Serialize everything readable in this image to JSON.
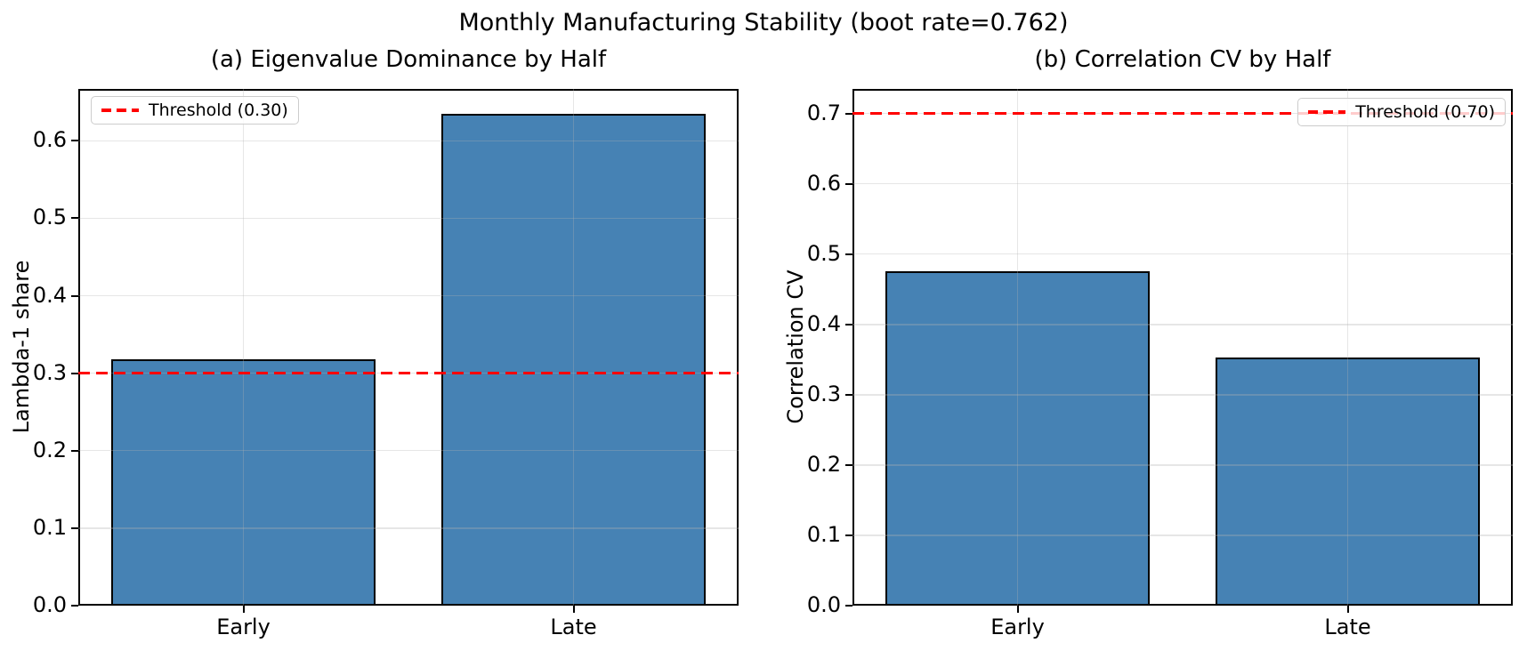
{
  "figure": {
    "suptitle": "Monthly Manufacturing Stability (boot rate=0.762)",
    "background": "#ffffff"
  },
  "colors": {
    "bar_fill": "#4682B4",
    "bar_edge": "#000000",
    "threshold": "#ff0000",
    "grid": "#b0b0b0",
    "spine": "#000000",
    "text": "#000000",
    "legend_border": "#cccccc"
  },
  "chart_data": [
    {
      "type": "bar",
      "panel": "a",
      "title": "(a) Eigenvalue Dominance by Half",
      "categories": [
        "Early",
        "Late"
      ],
      "values": [
        0.318,
        0.635
      ],
      "xlabel": "",
      "ylabel": "Lambda-1 share",
      "ylim": [
        0,
        0.667
      ],
      "yticks": [
        0.0,
        0.1,
        0.2,
        0.3,
        0.4,
        0.5,
        0.6
      ],
      "grid": true,
      "bar_width_frac": 0.8,
      "threshold": {
        "value": 0.3,
        "label": "Threshold (0.30)",
        "style": "dashed",
        "legend_position": "top-left"
      }
    },
    {
      "type": "bar",
      "panel": "b",
      "title": "(b) Correlation CV by Half",
      "categories": [
        "Early",
        "Late"
      ],
      "values": [
        0.476,
        0.353
      ],
      "xlabel": "",
      "ylabel": "Correlation CV",
      "ylim": [
        0,
        0.735
      ],
      "yticks": [
        0.0,
        0.1,
        0.2,
        0.3,
        0.4,
        0.5,
        0.6,
        0.7
      ],
      "grid": true,
      "bar_width_frac": 0.8,
      "threshold": {
        "value": 0.7,
        "label": "Threshold (0.70)",
        "style": "dashed",
        "legend_position": "top-right"
      }
    }
  ]
}
